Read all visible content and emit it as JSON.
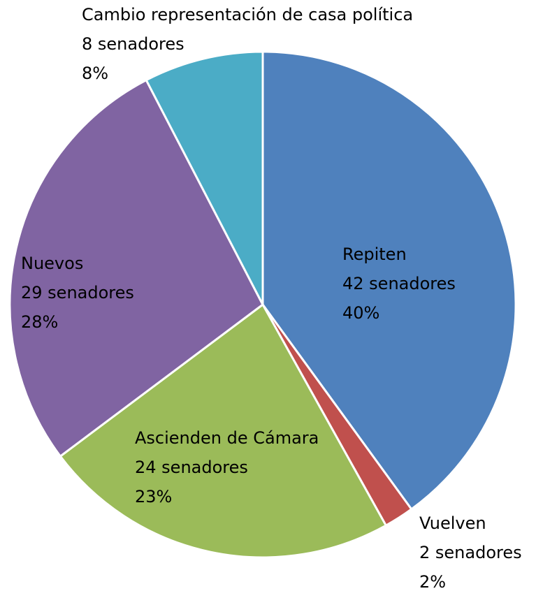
{
  "chart_data": {
    "type": "pie",
    "categories": [
      "Repiten",
      "Vuelven",
      "Ascienden de Cámara",
      "Nuevos",
      "Cambio representación de casa política"
    ],
    "values": [
      42,
      2,
      24,
      29,
      8
    ],
    "value_labels": [
      "42 senadores",
      "2 senadores",
      "24 senadores",
      "29 senadores",
      "8 senadores"
    ],
    "percentages": [
      40,
      2,
      23,
      28,
      8
    ],
    "percentage_labels": [
      "40%",
      "2%",
      "23%",
      "28%",
      "8%"
    ],
    "colors": [
      "#4f81bd",
      "#c0504d",
      "#9bbb59",
      "#8064a2",
      "#4bacc6"
    ]
  }
}
